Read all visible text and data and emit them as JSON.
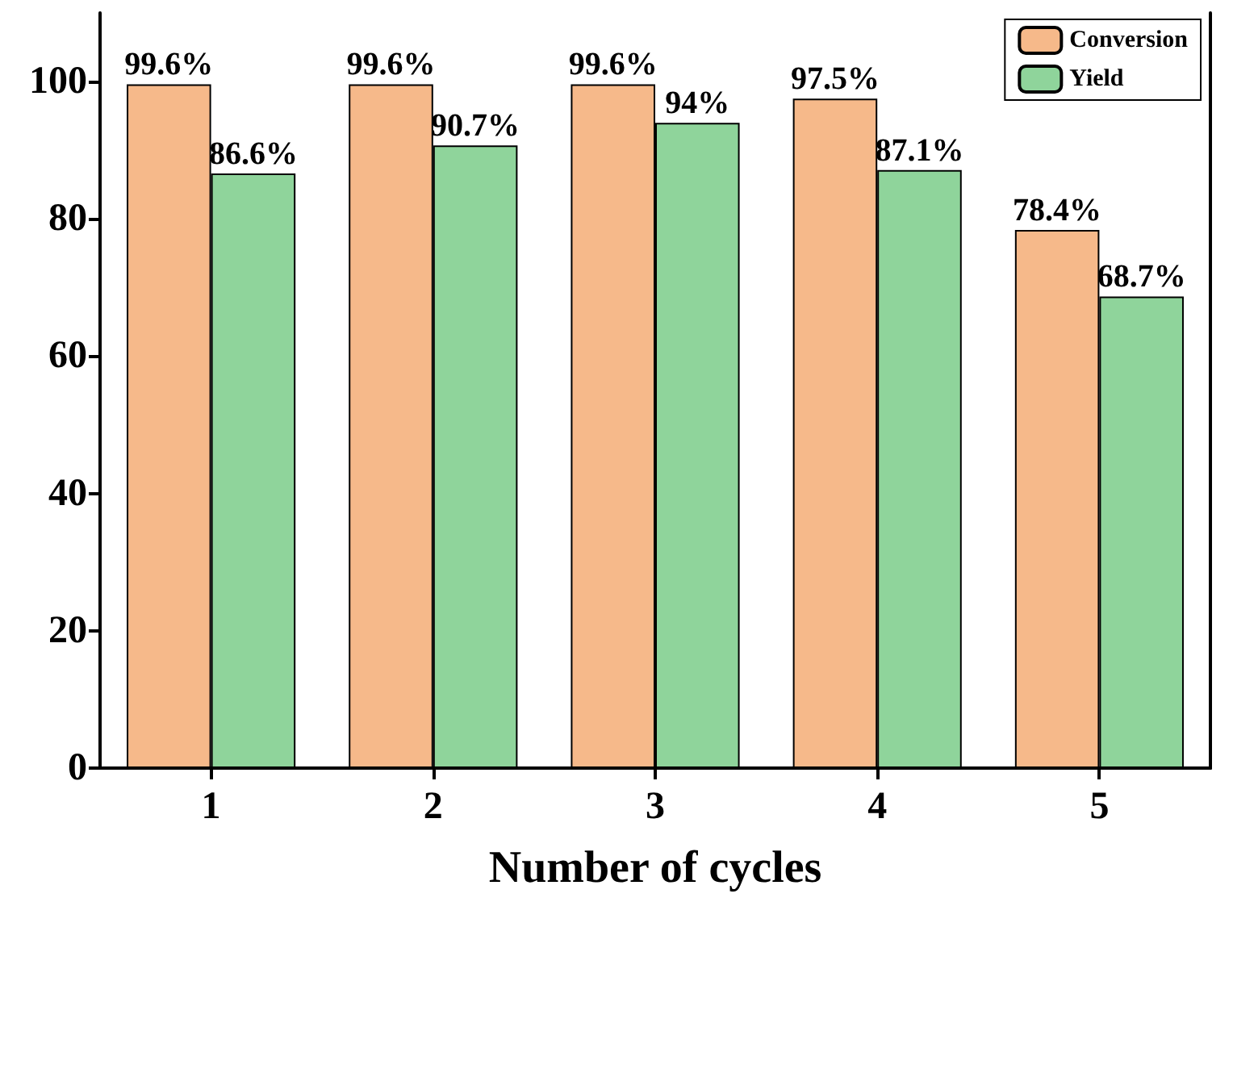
{
  "chart_data": {
    "type": "bar",
    "xlabel": "Number of cycles",
    "categories": [
      "1",
      "2",
      "3",
      "4",
      "5"
    ],
    "series": [
      {
        "name": "Conversion",
        "color": "#f6b98a",
        "values": [
          99.6,
          99.6,
          99.6,
          97.5,
          78.4
        ],
        "value_labels": [
          "99.6%",
          "99.6%",
          "99.6%",
          "97.5%",
          "78.4%"
        ]
      },
      {
        "name": "Yield",
        "color": "#8fd49b",
        "values": [
          86.6,
          90.7,
          94,
          87.1,
          68.7
        ],
        "value_labels": [
          "86.6%",
          "90.7%",
          "94%",
          "87.1%",
          "68.7%"
        ]
      }
    ],
    "ylim": [
      0,
      110
    ],
    "yticks": [
      0,
      20,
      40,
      60,
      80,
      100
    ],
    "grid": false,
    "legend": "top right"
  }
}
